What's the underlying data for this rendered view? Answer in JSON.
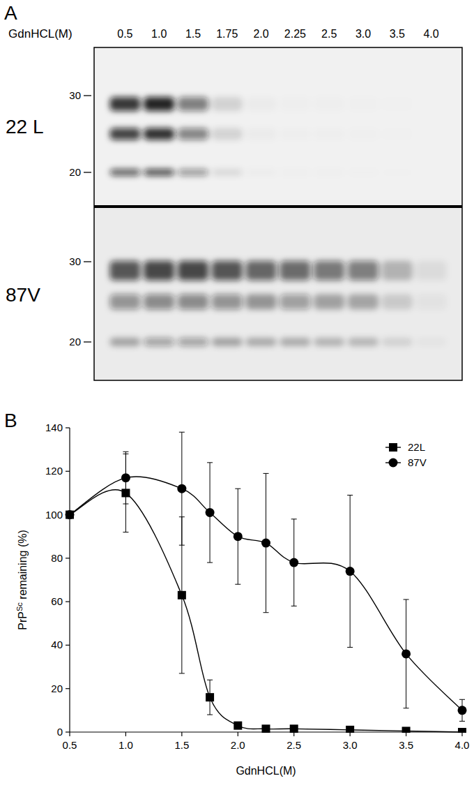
{
  "blot": {
    "panel_label": "A",
    "header": "GdnHCL(M)",
    "lanes": [
      "0.5",
      "1.0",
      "1.5",
      "1.75",
      "2.0",
      "2.25",
      "2.5",
      "3.0",
      "3.5",
      "4.0"
    ],
    "markers": [
      30,
      20
    ],
    "rows": [
      {
        "label": "22 L"
      },
      {
        "label": "87V"
      }
    ]
  },
  "chart_data": {
    "type": "line",
    "panel_label": "B",
    "x_label": "GdnHCL(M)",
    "y_label": [
      "PrP",
      "Sc",
      " remaining (%)"
    ],
    "x": [
      0.5,
      1.0,
      1.5,
      1.75,
      2.0,
      2.25,
      2.5,
      3.0,
      3.5,
      4.0
    ],
    "series": [
      {
        "name": "22L",
        "color": "#000000",
        "marker": "square",
        "values": [
          100,
          110,
          63,
          16,
          3,
          1.5,
          1.5,
          1,
          0.5,
          0
        ],
        "errors": [
          0,
          18,
          36,
          8,
          1,
          0.5,
          0.5,
          0.5,
          0.3,
          0
        ]
      },
      {
        "name": "87V",
        "color": "#000000",
        "marker": "circle",
        "values": [
          100,
          117,
          112,
          101,
          90,
          87,
          78,
          74,
          36,
          10
        ],
        "errors": [
          0,
          12,
          26,
          23,
          22,
          32,
          20,
          35,
          25,
          5
        ]
      }
    ],
    "xlim": [
      0.5,
      4.0
    ],
    "xticks": [
      {
        "value": 0.5,
        "label": "0.5"
      },
      {
        "value": 1.0,
        "label": "1.0"
      },
      {
        "value": 1.5,
        "label": "1.5"
      },
      {
        "value": 2.0,
        "label": "2.0"
      },
      {
        "value": 2.5,
        "label": "2.5"
      },
      {
        "value": 3.0,
        "label": "3.0"
      },
      {
        "value": 3.5,
        "label": "3.5"
      },
      {
        "value": 4.0,
        "label": "4.0"
      }
    ],
    "ylim": [
      0,
      140
    ],
    "yticks": [
      0,
      20,
      40,
      60,
      80,
      100,
      120,
      140
    ],
    "grid": false,
    "legend": "top-right"
  }
}
